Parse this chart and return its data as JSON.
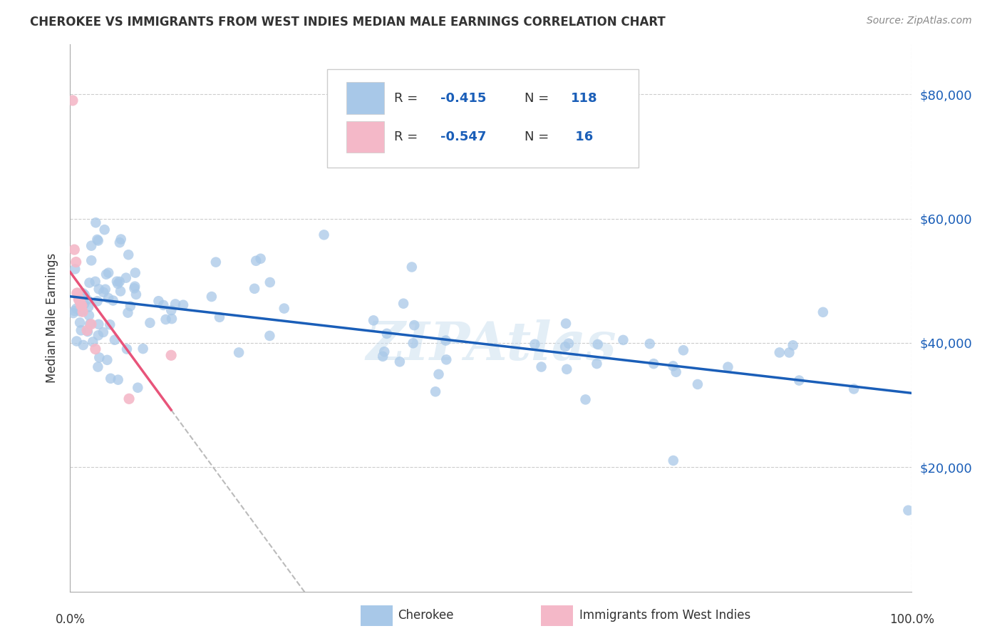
{
  "title": "CHEROKEE VS IMMIGRANTS FROM WEST INDIES MEDIAN MALE EARNINGS CORRELATION CHART",
  "source": "Source: ZipAtlas.com",
  "ylabel": "Median Male Earnings",
  "watermark": "ZIPAtlas",
  "legend_r1_val": "-0.415",
  "legend_n1_val": "118",
  "legend_r2_val": "-0.547",
  "legend_n2_val": " 16",
  "blue_color": "#a8c8e8",
  "pink_color": "#f4b8c8",
  "blue_line_color": "#1a5eb8",
  "pink_line_color": "#e8547a",
  "dash_color": "#bbbbbb",
  "background_color": "#ffffff",
  "grid_color": "#cccccc",
  "title_color": "#333333",
  "source_color": "#888888",
  "axis_label_color": "#333333",
  "right_tick_color": "#1a5eb8"
}
